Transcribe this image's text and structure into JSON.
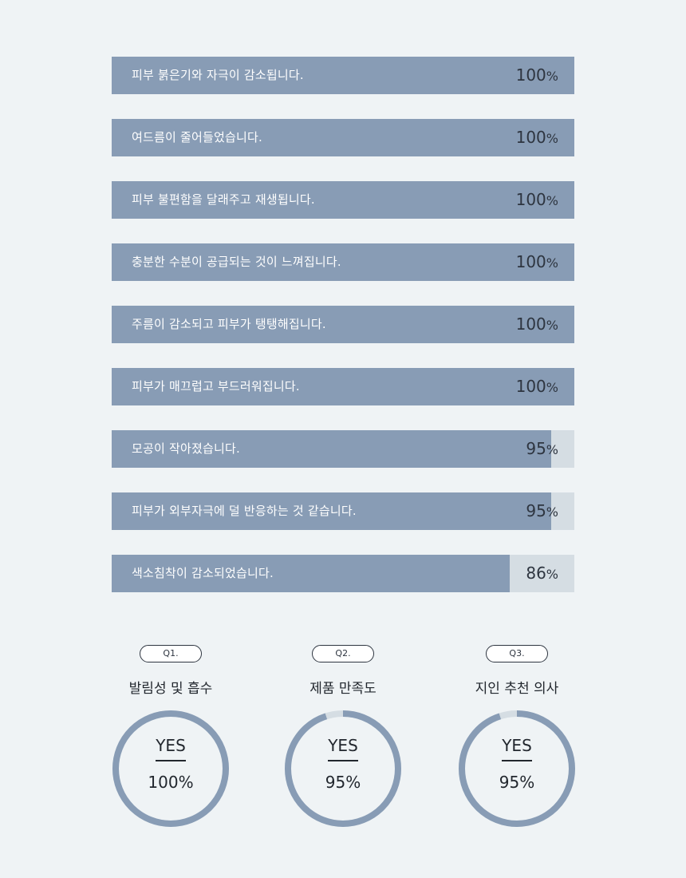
{
  "chart_data": [
    {
      "type": "bar",
      "orientation": "horizontal",
      "categories": [
        "피부 붉은기와 자극이 감소됩니다.",
        "여드름이 줄어들었습니다.",
        "피부 불편함을 달래주고 재생됩니다.",
        "충분한 수분이 공급되는 것이 느껴집니다.",
        "주름이 감소되고 피부가 탱탱해집니다.",
        "피부가 매끄럽고 부드러워집니다.",
        "모공이 작아졌습니다.",
        "피부가 외부자극에  덜 반응하는 것 같습니다.",
        "색소침착이 감소되었습니다."
      ],
      "values": [
        100,
        100,
        100,
        100,
        100,
        100,
        95,
        95,
        86
      ],
      "unit": "%",
      "xlim": [
        0,
        100
      ],
      "colors": {
        "fill": "#889cb5",
        "track": "#d5dde3",
        "label": "#ffffff",
        "value": "#2e3540"
      }
    },
    {
      "type": "pie",
      "variant": "donut",
      "tag": "Q1.",
      "title": "발림성 및 흡수",
      "answer": "YES",
      "value": 100,
      "value_label": "100%",
      "colors": {
        "fill": "#889cb5",
        "track": "#d5dde3"
      }
    },
    {
      "type": "pie",
      "variant": "donut",
      "tag": "Q2.",
      "title": "제품 만족도",
      "answer": "YES",
      "value": 95,
      "value_label": "95%",
      "colors": {
        "fill": "#889cb5",
        "track": "#d5dde3"
      }
    },
    {
      "type": "pie",
      "variant": "donut",
      "tag": "Q3.",
      "title": "지인 추천 의사",
      "answer": "YES",
      "value": 95,
      "value_label": "95%",
      "colors": {
        "fill": "#889cb5",
        "track": "#d5dde3"
      }
    }
  ]
}
